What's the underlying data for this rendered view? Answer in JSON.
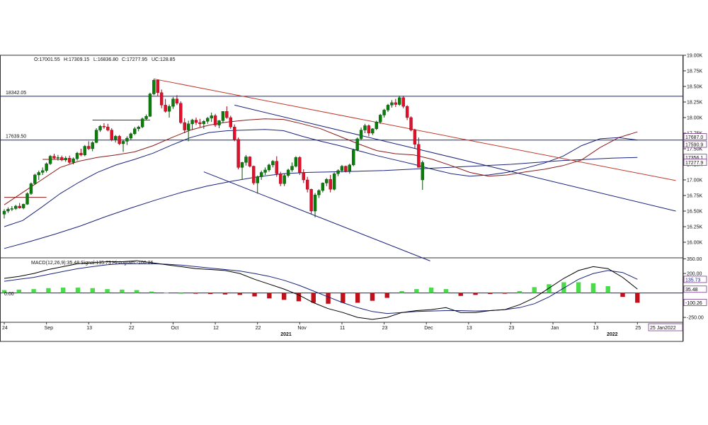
{
  "chart_data": {
    "type": "candlestick",
    "ohlc_header": {
      "open": "O:17001.55",
      "high": "H:17309.15",
      "low": "L:16836.80",
      "close": "C:17277.95",
      "change": "UC:128.85"
    },
    "price_axis": {
      "range": [
        15750,
        19000
      ],
      "ticks": [
        "19.00K",
        "18.75K",
        "18.50K",
        "18.25K",
        "18.00K",
        "17.75K",
        "17.50K",
        "17.25K",
        "17.00K",
        "16.75K",
        "16.50K",
        "16.25K",
        "16.00K"
      ],
      "tick_values": [
        19000,
        18750,
        18500,
        18250,
        18000,
        17750,
        17500,
        17250,
        17000,
        16750,
        16500,
        16250,
        16000
      ]
    },
    "price_tags": [
      {
        "label": "17687.0",
        "value": 17687
      },
      {
        "label": "17590.9",
        "value": 17590.9
      },
      {
        "label": "17356.1",
        "value": 17356.1
      },
      {
        "label": "17277.9",
        "value": 17277.9
      }
    ],
    "horizontal_levels": [
      {
        "label": "18342.05",
        "value": 18342.05
      },
      {
        "label": "17639.50",
        "value": 17639.5
      }
    ],
    "x_axis": {
      "ticks": [
        "24",
        "Sep",
        "13",
        "22",
        "Oct",
        "12",
        "22",
        "Nov",
        "11",
        "23",
        "Dec",
        "13",
        "23",
        "Jan",
        "13",
        "25"
      ],
      "tick_index": [
        0,
        11,
        22,
        33,
        44,
        55,
        66,
        77,
        88,
        99,
        110,
        121,
        132,
        143,
        154,
        165
      ],
      "years": [
        {
          "label": "2021",
          "index": 72
        },
        {
          "label": "2022",
          "index": 157
        }
      ],
      "cursor_date": "25 Jan2022"
    },
    "candles": [
      [
        16450,
        16530,
        16380,
        16500
      ],
      [
        16500,
        16560,
        16470,
        16530
      ],
      [
        16530,
        16580,
        16500,
        16540
      ],
      [
        16540,
        16600,
        16520,
        16580
      ],
      [
        16580,
        16630,
        16540,
        16550
      ],
      [
        16550,
        16620,
        16530,
        16610
      ],
      [
        16610,
        16800,
        16600,
        16780
      ],
      [
        16780,
        16960,
        16760,
        16940
      ],
      [
        16940,
        17100,
        16920,
        17080
      ],
      [
        17080,
        17150,
        17000,
        17120
      ],
      [
        17120,
        17200,
        17080,
        17150
      ],
      [
        17150,
        17280,
        17120,
        17260
      ],
      [
        17260,
        17400,
        17240,
        17380
      ],
      [
        17380,
        17420,
        17330,
        17350
      ],
      [
        17350,
        17400,
        17310,
        17360
      ],
      [
        17360,
        17390,
        17300,
        17320
      ],
      [
        17320,
        17380,
        17290,
        17350
      ],
      [
        17350,
        17390,
        17260,
        17280
      ],
      [
        17280,
        17360,
        17250,
        17340
      ],
      [
        17340,
        17450,
        17310,
        17430
      ],
      [
        17430,
        17500,
        17380,
        17400
      ],
      [
        17400,
        17560,
        17380,
        17540
      ],
      [
        17540,
        17620,
        17480,
        17500
      ],
      [
        17500,
        17620,
        17460,
        17600
      ],
      [
        17600,
        17830,
        17590,
        17800
      ],
      [
        17800,
        17880,
        17770,
        17860
      ],
      [
        17860,
        17910,
        17820,
        17850
      ],
      [
        17850,
        17900,
        17780,
        17800
      ],
      [
        17800,
        17830,
        17620,
        17650
      ],
      [
        17650,
        17720,
        17600,
        17700
      ],
      [
        17700,
        17720,
        17560,
        17580
      ],
      [
        17580,
        17640,
        17450,
        17620
      ],
      [
        17620,
        17700,
        17560,
        17670
      ],
      [
        17670,
        17760,
        17640,
        17740
      ],
      [
        17740,
        17850,
        17720,
        17820
      ],
      [
        17820,
        17870,
        17780,
        17850
      ],
      [
        17850,
        18000,
        17830,
        17980
      ],
      [
        17980,
        18050,
        17960,
        18020
      ],
      [
        18020,
        18400,
        18010,
        18380
      ],
      [
        18380,
        18620,
        18360,
        18600
      ],
      [
        18600,
        18610,
        18350,
        18400
      ],
      [
        18400,
        18450,
        18150,
        18200
      ],
      [
        18200,
        18300,
        18080,
        18100
      ],
      [
        18100,
        18210,
        18000,
        18180
      ],
      [
        18180,
        18330,
        18140,
        18300
      ],
      [
        18300,
        18360,
        18200,
        18230
      ],
      [
        18230,
        18260,
        17900,
        17920
      ],
      [
        17920,
        17990,
        17750,
        17800
      ],
      [
        17800,
        17950,
        17620,
        17900
      ],
      [
        17900,
        17980,
        17800,
        17960
      ],
      [
        17960,
        18000,
        17880,
        17920
      ],
      [
        17920,
        17980,
        17850,
        17900
      ],
      [
        17900,
        17960,
        17820,
        17940
      ],
      [
        17940,
        18010,
        17900,
        17990
      ],
      [
        17990,
        18080,
        17930,
        18030
      ],
      [
        18030,
        18060,
        17850,
        17880
      ],
      [
        17880,
        17960,
        17830,
        17950
      ],
      [
        17950,
        18080,
        17920,
        18100
      ],
      [
        18100,
        18180,
        17980,
        18000
      ],
      [
        18000,
        18030,
        17820,
        17850
      ],
      [
        17850,
        17890,
        17620,
        17650
      ],
      [
        17650,
        17680,
        17170,
        17200
      ],
      [
        17200,
        17290,
        17010,
        17280
      ],
      [
        17280,
        17400,
        17230,
        17370
      ],
      [
        17370,
        17380,
        17200,
        17220
      ],
      [
        17220,
        17230,
        16920,
        16950
      ],
      [
        16950,
        17070,
        16780,
        17050
      ],
      [
        17050,
        17150,
        17000,
        17120
      ],
      [
        17120,
        17200,
        17080,
        17160
      ],
      [
        17160,
        17260,
        17130,
        17240
      ],
      [
        17240,
        17320,
        17200,
        17300
      ],
      [
        17300,
        17380,
        17050,
        17100
      ],
      [
        17100,
        17130,
        16900,
        16940
      ],
      [
        16940,
        17100,
        16900,
        17070
      ],
      [
        17070,
        17180,
        17040,
        17160
      ],
      [
        17160,
        17280,
        17130,
        17220
      ],
      [
        17220,
        17380,
        17200,
        17360
      ],
      [
        17360,
        17380,
        17080,
        17120
      ],
      [
        17120,
        17170,
        16950,
        17000
      ],
      [
        17000,
        17050,
        16800,
        16850
      ],
      [
        16850,
        16860,
        16450,
        16500
      ],
      [
        16500,
        16790,
        16400,
        16760
      ],
      [
        16760,
        16850,
        16710,
        16830
      ],
      [
        16830,
        16960,
        16800,
        16950
      ],
      [
        16950,
        17030,
        16900,
        17010
      ],
      [
        17010,
        17080,
        16800,
        16850
      ],
      [
        16850,
        17120,
        16830,
        17100
      ],
      [
        17100,
        17170,
        17060,
        17150
      ],
      [
        17150,
        17240,
        17120,
        17220
      ],
      [
        17220,
        17230,
        17120,
        17140
      ],
      [
        17140,
        17260,
        17100,
        17240
      ],
      [
        17240,
        17500,
        17220,
        17480
      ],
      [
        17480,
        17680,
        17460,
        17660
      ],
      [
        17660,
        17840,
        17640,
        17800
      ],
      [
        17800,
        17900,
        17750,
        17870
      ],
      [
        17870,
        17890,
        17700,
        17750
      ],
      [
        17750,
        17830,
        17720,
        17820
      ],
      [
        17820,
        17950,
        17800,
        17930
      ],
      [
        17930,
        18060,
        17900,
        18040
      ],
      [
        18040,
        18140,
        18000,
        18120
      ],
      [
        18120,
        18220,
        18090,
        18200
      ],
      [
        18200,
        18280,
        18160,
        18240
      ],
      [
        18240,
        18300,
        18170,
        18210
      ],
      [
        18210,
        18350,
        18190,
        18320
      ],
      [
        18320,
        18350,
        18150,
        18180
      ],
      [
        18180,
        18200,
        17960,
        18000
      ],
      [
        18000,
        18020,
        17780,
        17800
      ],
      [
        17800,
        17820,
        17500,
        17570
      ],
      [
        17570,
        17680,
        17200,
        17200
      ],
      [
        17000,
        17310,
        16840,
        17280
      ]
    ],
    "indicators": {
      "ma_short": {
        "color": "#8b1a1a",
        "values": [
          16600,
          16800,
          17000,
          17200,
          17300,
          17360,
          17400,
          17450,
          17550,
          17680,
          17800,
          17880,
          17930,
          17960,
          17980,
          17970,
          17900,
          17820,
          17700,
          17580,
          17470,
          17420,
          17400,
          17330,
          17230,
          17120,
          17060,
          17080,
          17130,
          17170,
          17230,
          17320,
          17520,
          17680,
          17770
        ]
      },
      "ema_mid": {
        "color": "#1a237e",
        "values": [
          16250,
          16350,
          16560,
          16780,
          16960,
          17120,
          17240,
          17330,
          17430,
          17560,
          17680,
          17760,
          17790,
          17800,
          17810,
          17790,
          17700,
          17620,
          17550,
          17470,
          17390,
          17320,
          17250,
          17170,
          17100,
          17060,
          17080,
          17120,
          17190,
          17270,
          17380,
          17550,
          17660,
          17680,
          17640
        ]
      },
      "sma_long": {
        "color": "#1a237e",
        "values": [
          15900,
          16010,
          16130,
          16260,
          16410,
          16550,
          16680,
          16800,
          16900,
          16980,
          17050,
          17100,
          17120,
          17130,
          17140,
          17150,
          17170,
          17190,
          17210,
          17230,
          17250,
          17280,
          17310,
          17330,
          17350,
          17360
        ]
      }
    },
    "trend_lines": [
      {
        "from": [
          39,
          18620
        ],
        "to": [
          175,
          16990
        ],
        "color": "#c0392b"
      },
      {
        "from": [
          60,
          18200
        ],
        "to": [
          175,
          16500
        ],
        "color": "#1a237e"
      },
      {
        "from": [
          52,
          17130
        ],
        "to": [
          111,
          15700
        ],
        "color": "#1a237e"
      },
      {
        "from": [
          0,
          16720
        ],
        "to": [
          11,
          16720
        ],
        "color": "#8b1a1a"
      },
      {
        "from": [
          10,
          17330
        ],
        "to": [
          16,
          17330
        ],
        "color": "#8b1a1a"
      },
      {
        "from": [
          23,
          17960
        ],
        "to": [
          38,
          17960
        ],
        "color": "#8b1a1a"
      }
    ],
    "macd": {
      "title": "MACD(12,26,9):35.48 Signal:135.73 Histogram:-100.26",
      "zero_label": "0.00",
      "range": [
        -300,
        360
      ],
      "ticks": [
        "350.00",
        "200.00",
        "50.00",
        "-250.00"
      ],
      "tick_values": [
        350,
        200,
        50,
        -250
      ],
      "tags": [
        {
          "label": "135.73",
          "value": 135.73,
          "color": "#1a237e"
        },
        {
          "label": "35.48",
          "value": 35.48,
          "color": "#000000"
        },
        {
          "label": "-100.26",
          "value": -100.26,
          "color": "#000000"
        }
      ],
      "macd_line": [
        150,
        170,
        200,
        240,
        270,
        300,
        310,
        320,
        320,
        330,
        310,
        290,
        270,
        250,
        240,
        230,
        200,
        140,
        90,
        40,
        -20,
        -100,
        -160,
        -200,
        -250,
        -270,
        -250,
        -200,
        -180,
        -170,
        -150,
        -200,
        -200,
        -180,
        -170,
        -120,
        -50,
        50,
        150,
        230,
        270,
        250,
        160,
        40
      ],
      "signal_line": [
        120,
        140,
        160,
        190,
        220,
        250,
        270,
        290,
        300,
        300,
        300,
        295,
        285,
        270,
        255,
        240,
        225,
        200,
        170,
        130,
        80,
        20,
        -40,
        -100,
        -150,
        -190,
        -210,
        -200,
        -190,
        -185,
        -180,
        -180,
        -185,
        -180,
        -170,
        -150,
        -110,
        -40,
        50,
        140,
        200,
        230,
        210,
        140
      ],
      "histogram": [
        30,
        35,
        40,
        50,
        55,
        55,
        50,
        40,
        35,
        30,
        15,
        5,
        0,
        -5,
        -10,
        -15,
        -20,
        -35,
        -55,
        -70,
        -85,
        -100,
        -110,
        -100,
        -100,
        -80,
        -50,
        20,
        40,
        55,
        40,
        -30,
        -20,
        -10,
        -5,
        20,
        60,
        90,
        110,
        110,
        100,
        70,
        -40,
        -100
      ]
    },
    "colors": {
      "bull": "#0a7d0a",
      "bear": "#e0102a",
      "histogram_up": "#4cd94c",
      "histogram_down": "#c0101a",
      "grid_line": "#1a237e",
      "tag_box": "#7b3a8f"
    }
  }
}
